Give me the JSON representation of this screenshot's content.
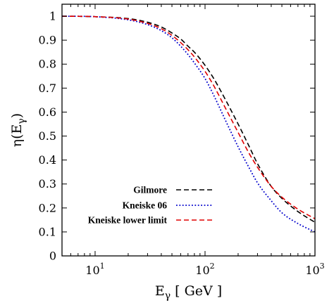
{
  "chart_data": {
    "type": "line",
    "xscale": "log",
    "xlim": [
      5,
      1000
    ],
    "ylim": [
      0,
      1.05
    ],
    "grid": false,
    "legend_position": "bottom-right",
    "xlabel": {
      "main": "E",
      "sub": "γ",
      "rest": " [ GeV ]"
    },
    "ylabel": {
      "main": "η(E",
      "sub": "γ",
      "close": ")"
    },
    "x_ticks": [
      {
        "value": 10,
        "base": "10",
        "exp": "1"
      },
      {
        "value": 100,
        "base": "10",
        "exp": "2"
      },
      {
        "value": 1000,
        "base": "10",
        "exp": "3"
      }
    ],
    "y_ticks": [
      {
        "value": 0,
        "label": "0"
      },
      {
        "value": 0.1,
        "label": "0.1"
      },
      {
        "value": 0.2,
        "label": "0.2"
      },
      {
        "value": 0.3,
        "label": "0.3"
      },
      {
        "value": 0.4,
        "label": "0.4"
      },
      {
        "value": 0.5,
        "label": "0.5"
      },
      {
        "value": 0.6,
        "label": "0.6"
      },
      {
        "value": 0.7,
        "label": "0.7"
      },
      {
        "value": 0.8,
        "label": "0.8"
      },
      {
        "value": 0.9,
        "label": "0.9"
      },
      {
        "value": 1,
        "label": "1"
      }
    ],
    "series": [
      {
        "name": "Gilmore",
        "color": "#000000",
        "dash": "dashed",
        "x": [
          5,
          10,
          20,
          30,
          40,
          50,
          60,
          70,
          80,
          100,
          120,
          150,
          200,
          250,
          300,
          400,
          500,
          700,
          1000
        ],
        "y": [
          1.0,
          0.998,
          0.99,
          0.975,
          0.955,
          0.93,
          0.905,
          0.875,
          0.85,
          0.795,
          0.74,
          0.66,
          0.55,
          0.46,
          0.385,
          0.29,
          0.24,
          0.185,
          0.14
        ]
      },
      {
        "name": "Kneiske 06",
        "color": "#0000cc",
        "dash": "dotted",
        "x": [
          5,
          10,
          20,
          30,
          40,
          50,
          60,
          70,
          80,
          100,
          120,
          150,
          200,
          250,
          300,
          400,
          500,
          700,
          1000
        ],
        "y": [
          1.0,
          0.998,
          0.985,
          0.965,
          0.94,
          0.91,
          0.875,
          0.84,
          0.805,
          0.74,
          0.67,
          0.575,
          0.455,
          0.37,
          0.305,
          0.23,
          0.18,
          0.135,
          0.1
        ]
      },
      {
        "name": "Kneiske lower limit",
        "color": "#e00000",
        "dash": "dashed",
        "x": [
          5,
          10,
          20,
          30,
          40,
          50,
          60,
          70,
          80,
          100,
          120,
          150,
          200,
          250,
          300,
          400,
          500,
          700,
          1000
        ],
        "y": [
          1.0,
          0.998,
          0.988,
          0.97,
          0.948,
          0.92,
          0.89,
          0.86,
          0.83,
          0.77,
          0.71,
          0.625,
          0.515,
          0.43,
          0.37,
          0.29,
          0.245,
          0.195,
          0.155
        ]
      }
    ]
  }
}
